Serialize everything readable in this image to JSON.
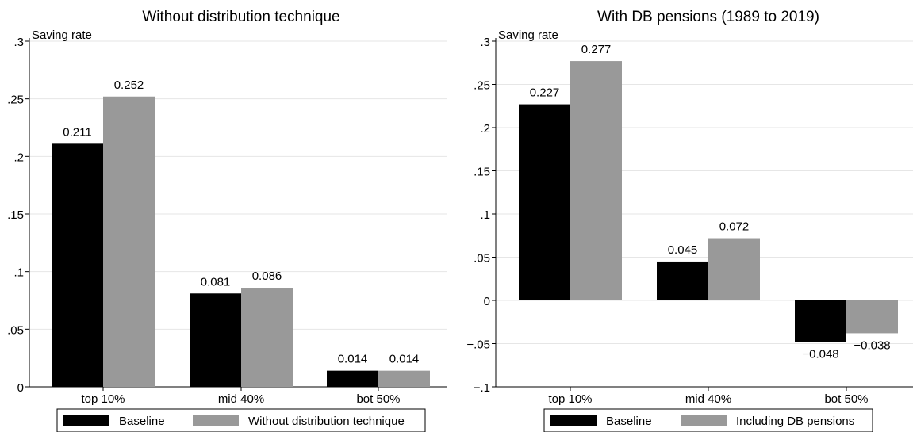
{
  "chart_data": [
    {
      "type": "bar",
      "title": "Without distribution technique",
      "ylabel": "Saving rate",
      "xlabel": "",
      "categories": [
        "top 10%",
        "mid 40%",
        "bot 50%"
      ],
      "series": [
        {
          "name": "Baseline",
          "color": "#000000",
          "values": [
            0.211,
            0.081,
            0.014
          ],
          "labels": [
            "0.211",
            "0.081",
            "0.014"
          ]
        },
        {
          "name": "Without distribution technique",
          "color": "#999999",
          "values": [
            0.252,
            0.086,
            0.014
          ],
          "labels": [
            "0.252",
            "0.086",
            "0.014"
          ]
        }
      ],
      "ylim": [
        0,
        0.3
      ],
      "yticks": [
        0,
        0.05,
        0.1,
        0.15,
        0.2,
        0.25,
        0.3
      ],
      "ytick_labels": [
        "0",
        ".05",
        ".1",
        ".15",
        ".2",
        ".25",
        ".3"
      ],
      "grid": true,
      "legend": "bottom"
    },
    {
      "type": "bar",
      "title": "With DB pensions (1989 to 2019)",
      "ylabel": "Saving rate",
      "xlabel": "",
      "categories": [
        "top 10%",
        "mid 40%",
        "bot 50%"
      ],
      "series": [
        {
          "name": "Baseline",
          "color": "#000000",
          "values": [
            0.227,
            0.045,
            -0.048
          ],
          "labels": [
            "0.227",
            "0.045",
            "−0.048"
          ]
        },
        {
          "name": "Including DB pensions",
          "color": "#999999",
          "values": [
            0.277,
            0.072,
            -0.038
          ],
          "labels": [
            "0.277",
            "0.072",
            "−0.038"
          ]
        }
      ],
      "ylim": [
        -0.1,
        0.3
      ],
      "yticks": [
        -0.1,
        -0.05,
        0,
        0.05,
        0.1,
        0.15,
        0.2,
        0.25,
        0.3
      ],
      "ytick_labels": [
        "−.1",
        "−.05",
        "0",
        ".05",
        ".1",
        ".15",
        ".2",
        ".25",
        ".3"
      ],
      "grid": true,
      "legend": "bottom"
    }
  ]
}
